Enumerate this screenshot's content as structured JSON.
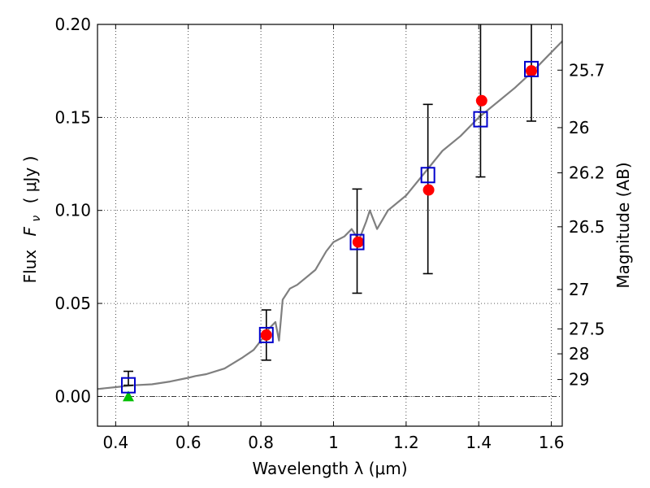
{
  "chart_data": {
    "type": "scatter",
    "title": "",
    "xlabel": "Wavelength  λ (μm)",
    "ylabel": "Flux  F_ν  ( μJy )",
    "ylabel_parts": {
      "main": "Flux",
      "symbol": "F",
      "subscript": "ν",
      "unit": "( μJy )"
    },
    "right_ylabel": "Magnitude (AB)",
    "xlim": [
      0.35,
      1.63
    ],
    "ylim": [
      -0.016,
      0.2
    ],
    "grid": true,
    "colors": {
      "sed": "#7f7f7f",
      "model_marker": "#0000cc",
      "observed_marker": "#ff0000",
      "upper_limit_marker": "#00bf00",
      "error_bar": "#000000"
    },
    "x_ticks": [
      {
        "value": 0.4,
        "label": "0.4"
      },
      {
        "value": 0.6,
        "label": "0.6"
      },
      {
        "value": 0.8,
        "label": "0.8"
      },
      {
        "value": 1.0,
        "label": "1"
      },
      {
        "value": 1.2,
        "label": "1.2"
      },
      {
        "value": 1.4,
        "label": "1.4"
      },
      {
        "value": 1.6,
        "label": "1.6"
      }
    ],
    "y_ticks": [
      {
        "value": 0.0,
        "label": "0.00"
      },
      {
        "value": 0.05,
        "label": "0.05"
      },
      {
        "value": 0.1,
        "label": "0.10"
      },
      {
        "value": 0.15,
        "label": "0.15"
      },
      {
        "value": 0.2,
        "label": "0.20"
      }
    ],
    "magnitude_ticks": [
      {
        "value": 0.1754,
        "label": "25.7"
      },
      {
        "value": 0.1445,
        "label": "26"
      },
      {
        "value": 0.1202,
        "label": "26.2"
      },
      {
        "value": 0.0912,
        "label": "26.5"
      },
      {
        "value": 0.0575,
        "label": "27"
      },
      {
        "value": 0.0363,
        "label": "27.5"
      },
      {
        "value": 0.0229,
        "label": "28"
      },
      {
        "value": 0.0091,
        "label": "29"
      }
    ],
    "series": [
      {
        "type": "line",
        "x": [
          0.35,
          0.4,
          0.45,
          0.5,
          0.55,
          0.6,
          0.62,
          0.65,
          0.7,
          0.75,
          0.78,
          0.8,
          0.82,
          0.84,
          0.85,
          0.86,
          0.88,
          0.9,
          0.95,
          0.98,
          1.0,
          1.03,
          1.05,
          1.07,
          1.09,
          1.1,
          1.12,
          1.15,
          1.2,
          1.25,
          1.3,
          1.35,
          1.4,
          1.45,
          1.5,
          1.55,
          1.6,
          1.63
        ],
        "y": [
          0.004,
          0.005,
          0.006,
          0.0065,
          0.008,
          0.01,
          0.011,
          0.012,
          0.015,
          0.021,
          0.025,
          0.03,
          0.036,
          0.04,
          0.03,
          0.052,
          0.058,
          0.06,
          0.068,
          0.078,
          0.083,
          0.086,
          0.09,
          0.084,
          0.094,
          0.1,
          0.09,
          0.1,
          0.108,
          0.12,
          0.132,
          0.14,
          0.15,
          0.158,
          0.166,
          0.175,
          0.185,
          0.191
        ]
      },
      {
        "type": "scatter",
        "marker": "square",
        "x": [
          0.435,
          0.815,
          1.065,
          1.26,
          1.405,
          1.545
        ],
        "y": [
          0.006,
          0.033,
          0.083,
          0.119,
          0.149,
          0.176
        ],
        "yerr_low": [
          0.006,
          0.0195,
          0.0555,
          0.066,
          0.118,
          0.148
        ],
        "yerr_high": [
          0.0135,
          0.0465,
          0.1115,
          0.157,
          0.201,
          0.202
        ]
      },
      {
        "type": "scatter",
        "marker": "circle",
        "x": [
          0.815,
          1.068,
          1.262,
          1.408,
          1.545
        ],
        "y": [
          0.033,
          0.083,
          0.111,
          0.159,
          0.175
        ]
      },
      {
        "type": "scatter",
        "marker": "triangle",
        "x": [
          0.435
        ],
        "y": [
          0.0
        ]
      }
    ]
  }
}
